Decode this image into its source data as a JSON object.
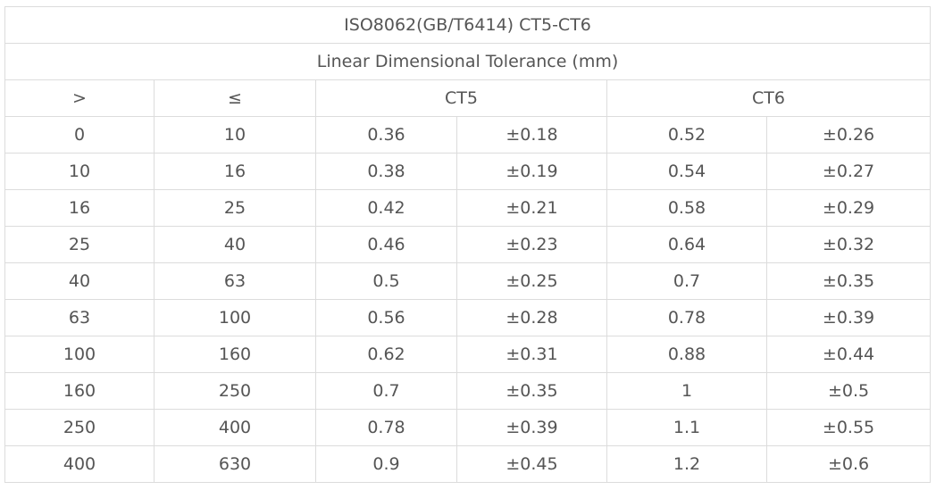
{
  "table": {
    "title": "ISO8062(GB/T6414) CT5-CT6",
    "subtitle": "Linear Dimensional Tolerance (mm)",
    "headers": [
      ">",
      "≤",
      "CT5",
      "CT6"
    ],
    "rows": [
      [
        "0",
        "10",
        "0.36",
        "±0.18",
        "0.52",
        "±0.26"
      ],
      [
        "10",
        "16",
        "0.38",
        "±0.19",
        "0.54",
        "±0.27"
      ],
      [
        "16",
        "25",
        "0.42",
        "±0.21",
        "0.58",
        "±0.29"
      ],
      [
        "25",
        "40",
        "0.46",
        "±0.23",
        "0.64",
        "±0.32"
      ],
      [
        "40",
        "63",
        "0.5",
        "±0.25",
        "0.7",
        "±0.35"
      ],
      [
        "63",
        "100",
        "0.56",
        "±0.28",
        "0.78",
        "±0.39"
      ],
      [
        "100",
        "160",
        "0.62",
        "±0.31",
        "0.88",
        "±0.44"
      ],
      [
        "160",
        "250",
        "0.7",
        "±0.35",
        "1",
        "±0.5"
      ],
      [
        "250",
        "400",
        "0.78",
        "±0.39",
        "1.1",
        "±0.55"
      ],
      [
        "400",
        "630",
        "0.9",
        "±0.45",
        "1.2",
        "±0.6"
      ]
    ]
  }
}
